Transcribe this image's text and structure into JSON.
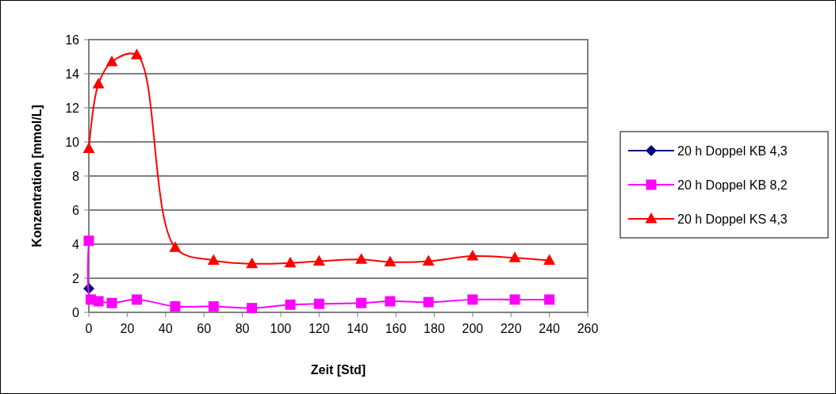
{
  "chart_data": {
    "type": "line",
    "xlabel": "Zeit [Std]",
    "ylabel": "Konzentration [mmol/L]",
    "xlim": [
      0,
      260
    ],
    "xticks": [
      0,
      20,
      40,
      60,
      80,
      100,
      120,
      140,
      160,
      180,
      200,
      220,
      240,
      260
    ],
    "ylim": [
      0,
      16
    ],
    "yticks": [
      0,
      2,
      4,
      6,
      8,
      10,
      12,
      14,
      16
    ],
    "grid": "y",
    "legend": "right",
    "series": [
      {
        "name": "20 h Doppel KB 4,3",
        "color": "#000080",
        "marker": "diamond",
        "x": [
          0
        ],
        "values": [
          1.4
        ]
      },
      {
        "name": "20 h Doppel KB 8,2",
        "color": "#ff00ff",
        "marker": "square",
        "x": [
          0,
          1,
          5,
          12,
          25,
          45,
          65,
          85,
          105,
          120,
          142,
          157,
          177,
          200,
          222,
          240
        ],
        "values": [
          4.2,
          0.75,
          0.65,
          0.55,
          0.75,
          0.35,
          0.35,
          0.25,
          0.45,
          0.5,
          0.55,
          0.65,
          0.6,
          0.75,
          0.75,
          0.75
        ]
      },
      {
        "name": "20 h Doppel KS 4,3",
        "color": "#ff0000",
        "marker": "triangle",
        "x": [
          0,
          5,
          12,
          25,
          45,
          65,
          85,
          105,
          120,
          142,
          157,
          177,
          200,
          222,
          240
        ],
        "values": [
          9.6,
          13.4,
          14.7,
          15.1,
          3.8,
          3.05,
          2.85,
          2.9,
          3.0,
          3.1,
          2.95,
          3.0,
          3.3,
          3.2,
          3.05
        ]
      }
    ]
  }
}
